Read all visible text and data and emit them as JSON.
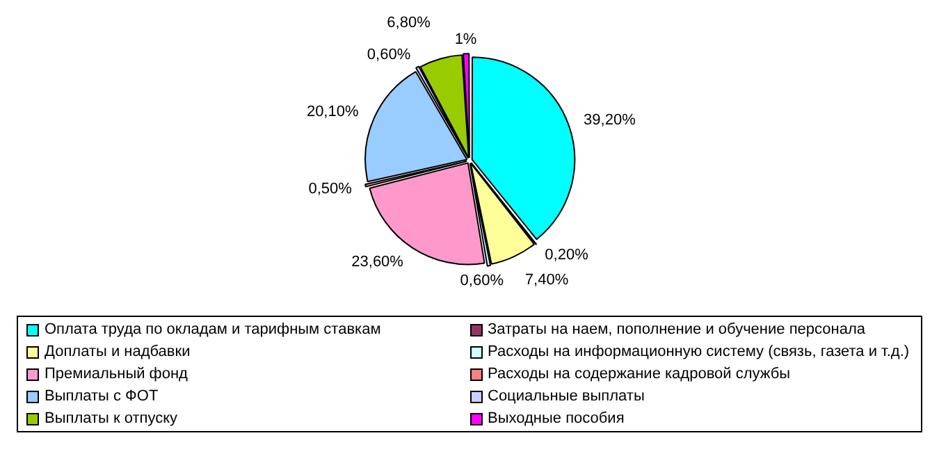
{
  "chart_data": {
    "type": "pie",
    "categories": [
      "Оплата труда по окладам и тарифным ставкам",
      "Затраты на наем, пополнение и обучение персонала",
      "Доплаты и надбавки",
      "Расходы на информационную систему (связь, газета и т.д.)",
      "Премиальный фонд",
      "Расходы на содержание кадровой службы",
      "Выплаты с ФОТ",
      "Социальные выплаты",
      "Выплаты к отпуску",
      "Выходные пособия"
    ],
    "values": [
      39.2,
      0.2,
      7.4,
      0.6,
      23.6,
      0.5,
      20.1,
      0.6,
      6.8,
      1
    ],
    "value_labels": [
      "39,20%",
      "0,20%",
      "7,40%",
      "0,60%",
      "23,60%",
      "0,50%",
      "20,10%",
      "0,60%",
      "6,80%",
      "1%"
    ],
    "colors": [
      "#00ffff",
      "#993366",
      "#ffff99",
      "#ccffff",
      "#ff99cc",
      "#ff8080",
      "#99ccff",
      "#ccccff",
      "#99cc00",
      "#ff00ff"
    ],
    "legend": "bottom"
  }
}
